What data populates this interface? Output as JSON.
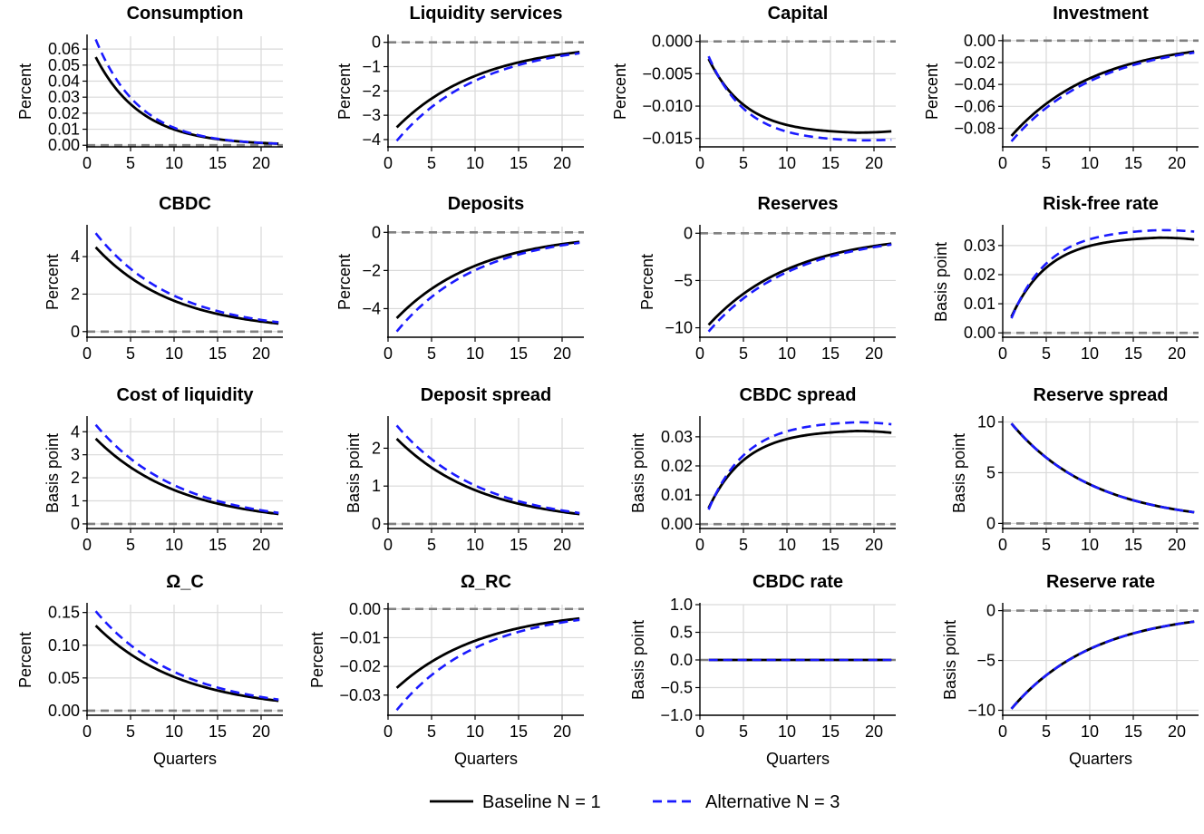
{
  "chart_data": [
    {
      "type": "line",
      "title": "Consumption",
      "ylabel": "Percent",
      "xlabel": "",
      "xlim": [
        0,
        22.5
      ],
      "ylim": [
        -0.001,
        0.068
      ],
      "xticks": [
        0,
        5,
        10,
        15,
        20
      ],
      "yticks": [
        0.0,
        0.01,
        0.02,
        0.03,
        0.04,
        0.05,
        0.06
      ],
      "ytick_labels": [
        "0.00",
        "0.01",
        "0.02",
        "0.03",
        "0.04",
        "0.05",
        "0.06"
      ],
      "zero_line": true,
      "series": [
        {
          "name": "Baseline N = 1",
          "kind": "exp",
          "start": 0.055,
          "end": 0.001
        },
        {
          "name": "Alternative N = 3",
          "kind": "exp",
          "start": 0.066,
          "end": 0.001
        }
      ]
    },
    {
      "type": "line",
      "title": "Liquidity services",
      "ylabel": "Percent",
      "xlabel": "",
      "xlim": [
        0,
        22.5
      ],
      "ylim": [
        -4.3,
        0.25
      ],
      "xticks": [
        0,
        5,
        10,
        15,
        20
      ],
      "yticks": [
        0,
        -1,
        -2,
        -3,
        -4
      ],
      "ytick_labels": [
        "0",
        "−1",
        "−2",
        "−3",
        "−4"
      ],
      "zero_line": true,
      "series": [
        {
          "name": "Baseline N = 1",
          "kind": "exp",
          "start": -3.5,
          "end": -0.4
        },
        {
          "name": "Alternative N = 3",
          "kind": "exp",
          "start": -4.05,
          "end": -0.45
        }
      ]
    },
    {
      "type": "line",
      "title": "Capital",
      "ylabel": "Percent",
      "xlabel": "",
      "xlim": [
        0,
        22.5
      ],
      "ylim": [
        -0.0163,
        0.0008
      ],
      "xticks": [
        0,
        5,
        10,
        15,
        20
      ],
      "yticks": [
        0.0,
        -0.005,
        -0.01,
        -0.015
      ],
      "ytick_labels": [
        "0.000",
        "−0.005",
        "−0.010",
        "−0.015"
      ],
      "zero_line": true,
      "series": [
        {
          "name": "Baseline N = 1",
          "kind": "hump",
          "a": -0.0027,
          "peak": -0.0141,
          "tpeak": 18,
          "end": -0.0139
        },
        {
          "name": "Alternative N = 3",
          "kind": "hump",
          "a": -0.0023,
          "peak": -0.0153,
          "tpeak": 18,
          "end": -0.0152
        }
      ]
    },
    {
      "type": "line",
      "title": "Investment",
      "ylabel": "Percent",
      "xlabel": "",
      "xlim": [
        0,
        22.5
      ],
      "ylim": [
        -0.097,
        0.004
      ],
      "xticks": [
        0,
        5,
        10,
        15,
        20
      ],
      "yticks": [
        0.0,
        -0.02,
        -0.04,
        -0.06,
        -0.08
      ],
      "ytick_labels": [
        "0.00",
        "−0.02",
        "−0.04",
        "−0.06",
        "−0.08"
      ],
      "zero_line": true,
      "series": [
        {
          "name": "Baseline N = 1",
          "kind": "exp",
          "start": -0.087,
          "end": -0.01
        },
        {
          "name": "Alternative N = 3",
          "kind": "exp",
          "start": -0.092,
          "end": -0.011
        }
      ]
    },
    {
      "type": "line",
      "title": "CBDC",
      "ylabel": "Percent",
      "xlabel": "",
      "xlim": [
        0,
        22.5
      ],
      "ylim": [
        -0.3,
        5.6
      ],
      "xticks": [
        0,
        5,
        10,
        15,
        20
      ],
      "yticks": [
        0,
        2,
        4
      ],
      "ytick_labels": [
        "0",
        "2",
        "4"
      ],
      "zero_line": true,
      "series": [
        {
          "name": "Baseline N = 1",
          "kind": "exp",
          "start": 4.5,
          "end": 0.43
        },
        {
          "name": "Alternative N = 3",
          "kind": "exp",
          "start": 5.25,
          "end": 0.5
        }
      ]
    },
    {
      "type": "line",
      "title": "Deposits",
      "ylabel": "Percent",
      "xlabel": "",
      "xlim": [
        0,
        22.5
      ],
      "ylim": [
        -5.5,
        0.3
      ],
      "xticks": [
        0,
        5,
        10,
        15,
        20
      ],
      "yticks": [
        0,
        -2,
        -4
      ],
      "ytick_labels": [
        "0",
        "−2",
        "−4"
      ],
      "zero_line": true,
      "series": [
        {
          "name": "Baseline N = 1",
          "kind": "exp",
          "start": -4.5,
          "end": -0.5
        },
        {
          "name": "Alternative N = 3",
          "kind": "exp",
          "start": -5.2,
          "end": -0.55
        }
      ]
    },
    {
      "type": "line",
      "title": "Reserves",
      "ylabel": "Percent",
      "xlabel": "",
      "xlim": [
        0,
        22.5
      ],
      "ylim": [
        -11.0,
        0.7
      ],
      "xticks": [
        0,
        5,
        10,
        15,
        20
      ],
      "yticks": [
        0,
        -5,
        -10
      ],
      "ytick_labels": [
        "0",
        "−5",
        "−10"
      ],
      "zero_line": true,
      "series": [
        {
          "name": "Baseline N = 1",
          "kind": "exp",
          "start": -9.7,
          "end": -1.1
        },
        {
          "name": "Alternative N = 3",
          "kind": "exp",
          "start": -10.4,
          "end": -1.2
        }
      ]
    },
    {
      "type": "line",
      "title": "Risk-free rate",
      "ylabel": "Basis point",
      "xlabel": "",
      "xlim": [
        0,
        22.5
      ],
      "ylim": [
        -0.0015,
        0.0365
      ],
      "xticks": [
        0,
        5,
        10,
        15,
        20
      ],
      "yticks": [
        0.0,
        0.01,
        0.02,
        0.03
      ],
      "ytick_labels": [
        "0.00",
        "0.01",
        "0.02",
        "0.03"
      ],
      "zero_line": true,
      "series": [
        {
          "name": "Baseline N = 1",
          "kind": "hump",
          "a": 0.0055,
          "peak": 0.0327,
          "tpeak": 18,
          "end": 0.0321
        },
        {
          "name": "Alternative N = 3",
          "kind": "hump",
          "a": 0.005,
          "peak": 0.0353,
          "tpeak": 18,
          "end": 0.0348
        }
      ]
    },
    {
      "type": "line",
      "title": "Cost of liquidity",
      "ylabel": "Basis point",
      "xlabel": "",
      "xlim": [
        0,
        22.5
      ],
      "ylim": [
        -0.2,
        4.6
      ],
      "xticks": [
        0,
        5,
        10,
        15,
        20
      ],
      "yticks": [
        0,
        1,
        2,
        3,
        4
      ],
      "ytick_labels": [
        "0",
        "1",
        "2",
        "3",
        "4"
      ],
      "zero_line": true,
      "series": [
        {
          "name": "Baseline N = 1",
          "kind": "exp",
          "start": 3.7,
          "end": 0.43
        },
        {
          "name": "Alternative N = 3",
          "kind": "exp",
          "start": 4.3,
          "end": 0.48
        }
      ]
    },
    {
      "type": "line",
      "title": "Deposit spread",
      "ylabel": "Basis point",
      "xlabel": "",
      "xlim": [
        0,
        22.5
      ],
      "ylim": [
        -0.12,
        2.8
      ],
      "xticks": [
        0,
        5,
        10,
        15,
        20
      ],
      "yticks": [
        0,
        1,
        2
      ],
      "ytick_labels": [
        "0",
        "1",
        "2"
      ],
      "zero_line": true,
      "series": [
        {
          "name": "Baseline N = 1",
          "kind": "exp",
          "start": 2.25,
          "end": 0.26
        },
        {
          "name": "Alternative N = 3",
          "kind": "exp",
          "start": 2.6,
          "end": 0.29
        }
      ]
    },
    {
      "type": "line",
      "title": "CBDC spread",
      "ylabel": "Basis point",
      "xlabel": "",
      "xlim": [
        0,
        22.5
      ],
      "ylim": [
        -0.0015,
        0.0365
      ],
      "xticks": [
        0,
        5,
        10,
        15,
        20
      ],
      "yticks": [
        0.0,
        0.01,
        0.02,
        0.03
      ],
      "ytick_labels": [
        "0.00",
        "0.01",
        "0.02",
        "0.03"
      ],
      "zero_line": true,
      "series": [
        {
          "name": "Baseline N = 1",
          "kind": "hump",
          "a": 0.0055,
          "peak": 0.032,
          "tpeak": 18,
          "end": 0.0314
        },
        {
          "name": "Alternative N = 3",
          "kind": "hump",
          "a": 0.005,
          "peak": 0.035,
          "tpeak": 18,
          "end": 0.0343
        }
      ]
    },
    {
      "type": "line",
      "title": "Reserve spread",
      "ylabel": "Basis point",
      "xlabel": "",
      "xlim": [
        0,
        22.5
      ],
      "ylim": [
        -0.5,
        10.4
      ],
      "xticks": [
        0,
        5,
        10,
        15,
        20
      ],
      "yticks": [
        0,
        5,
        10
      ],
      "ytick_labels": [
        "0",
        "5",
        "10"
      ],
      "zero_line": true,
      "series": [
        {
          "name": "Baseline N = 1",
          "kind": "exp",
          "start": 9.85,
          "end": 1.1
        },
        {
          "name": "Alternative N = 3",
          "kind": "exp",
          "start": 9.85,
          "end": 1.1
        }
      ]
    },
    {
      "type": "line",
      "title": "Ω_C",
      "ylabel": "Percent",
      "xlabel": "Quarters",
      "xlim": [
        0,
        22.5
      ],
      "ylim": [
        -0.007,
        0.162
      ],
      "xticks": [
        0,
        5,
        10,
        15,
        20
      ],
      "yticks": [
        0.0,
        0.05,
        0.1,
        0.15
      ],
      "ytick_labels": [
        "0.00",
        "0.05",
        "0.10",
        "0.15"
      ],
      "zero_line": true,
      "series": [
        {
          "name": "Baseline N = 1",
          "kind": "exp",
          "start": 0.13,
          "end": 0.015
        },
        {
          "name": "Alternative N = 3",
          "kind": "exp",
          "start": 0.152,
          "end": 0.017
        }
      ]
    },
    {
      "type": "line",
      "title": "Ω_RC",
      "ylabel": "Percent",
      "xlabel": "Quarters",
      "xlim": [
        0,
        22.5
      ],
      "ylim": [
        -0.037,
        0.0015
      ],
      "xticks": [
        0,
        5,
        10,
        15,
        20
      ],
      "yticks": [
        0.0,
        -0.01,
        -0.02,
        -0.03
      ],
      "ytick_labels": [
        "0.00",
        "−0.01",
        "−0.02",
        "−0.03"
      ],
      "zero_line": true,
      "series": [
        {
          "name": "Baseline N = 1",
          "kind": "exp",
          "start": -0.0275,
          "end": -0.0033
        },
        {
          "name": "Alternative N = 3",
          "kind": "exp",
          "start": -0.0352,
          "end": -0.0038
        }
      ]
    },
    {
      "type": "line",
      "title": "CBDC rate",
      "ylabel": "Basis point",
      "xlabel": "Quarters",
      "xlim": [
        0,
        22.5
      ],
      "ylim": [
        -1.0,
        1.0
      ],
      "xticks": [
        0,
        5,
        10,
        15,
        20
      ],
      "yticks": [
        1.0,
        0.5,
        0.0,
        -0.5,
        -1.0
      ],
      "ytick_labels": [
        "1.0",
        "0.5",
        "0.0",
        "−0.5",
        "−1.0"
      ],
      "zero_line": true,
      "series": [
        {
          "name": "Baseline N = 1",
          "kind": "flat",
          "value": 0.0
        },
        {
          "name": "Alternative N = 3",
          "kind": "flat",
          "value": 0.0
        }
      ]
    },
    {
      "type": "line",
      "title": "Reserve rate",
      "ylabel": "Basis point",
      "xlabel": "Quarters",
      "xlim": [
        0,
        22.5
      ],
      "ylim": [
        -10.5,
        0.6
      ],
      "xticks": [
        0,
        5,
        10,
        15,
        20
      ],
      "yticks": [
        0,
        -5,
        -10
      ],
      "ytick_labels": [
        "0",
        "−5",
        "−10"
      ],
      "zero_line": true,
      "series": [
        {
          "name": "Baseline N = 1",
          "kind": "exp",
          "start": -9.85,
          "end": -1.1
        },
        {
          "name": "Alternative N = 3",
          "kind": "exp",
          "start": -9.85,
          "end": -1.1
        }
      ]
    }
  ],
  "legend": {
    "position": "bottom-center",
    "entries": [
      {
        "label": "Baseline N = 1",
        "color": "#000000",
        "style": "solid"
      },
      {
        "label": "Alternative N = 3",
        "color": "#1a1aff",
        "style": "dashed"
      }
    ]
  },
  "colors": {
    "baseline": "#000000",
    "alternative": "#1a1aff",
    "zero_line": "#808080",
    "grid": "#d9d9d9"
  }
}
